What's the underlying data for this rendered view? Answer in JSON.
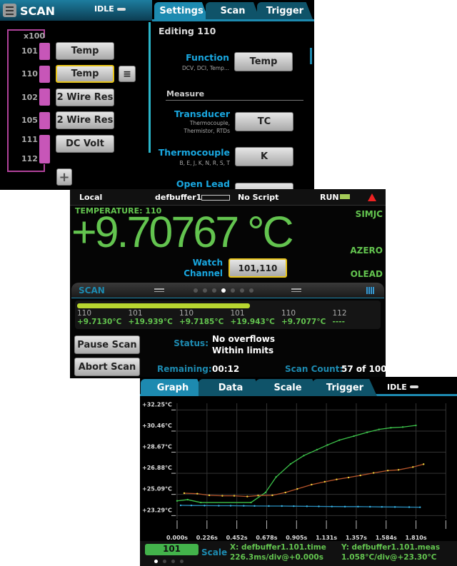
{
  "scan_screen": {
    "title": "SCAN",
    "state": "IDLE",
    "multiplier": "x100",
    "tabs": [
      {
        "label": "Settings",
        "active": true
      },
      {
        "label": "Scan",
        "active": false
      },
      {
        "label": "Trigger",
        "active": false
      }
    ],
    "channels": [
      {
        "ch": "101",
        "func": "Temp"
      },
      {
        "ch": "110",
        "func": "Temp",
        "selected": true
      },
      {
        "ch": "102",
        "func": "2 Wire Res"
      },
      {
        "ch": "105",
        "func": "2 Wire Res"
      },
      {
        "ch": "111",
        "func": "DC Volt"
      },
      {
        "ch": "112",
        "func": ""
      }
    ],
    "editing": "Editing 110",
    "function": {
      "label": "Function",
      "hint": "DCV, DCI, Temp...",
      "value": "Temp"
    },
    "measure_header": "Measure",
    "transducer": {
      "label": "Transducer",
      "hint1": "Thermocouple,",
      "hint2": "Thermistor, RTDs",
      "value": "TC"
    },
    "thermocouple": {
      "label": "Thermocouple",
      "hint": "B, E, J, K, N, R, S, T",
      "value": "K"
    },
    "open_lead": {
      "label": "Open Lead"
    }
  },
  "home_screen": {
    "status": {
      "mode": "Local",
      "buffer": "defbuffer1",
      "script": "No Script",
      "run": "RUN"
    },
    "function_label": "TEMPERATURE: 110",
    "reading": "+9.70767 °C",
    "indicators": [
      "SIMJC",
      "AZERO",
      "OLEAD"
    ],
    "watch_label1": "Watch",
    "watch_label2": "Channel",
    "watch_value": "101,110",
    "swipe_title": "SCAN",
    "swipe_page": 4,
    "swipe_pages": 7,
    "progress": 0.57,
    "readings": [
      {
        "ch": "110",
        "val": "+9.7130°C"
      },
      {
        "ch": "101",
        "val": "+19.939°C"
      },
      {
        "ch": "110",
        "val": "+9.7185°C"
      },
      {
        "ch": "101",
        "val": "+19.943°C"
      },
      {
        "ch": "110",
        "val": "+9.7077°C"
      },
      {
        "ch": "112",
        "val": "----"
      }
    ],
    "pause": "Pause Scan",
    "abort": "Abort Scan",
    "status_label": "Status:",
    "status_1": "No overflows",
    "status_2": "Within limits",
    "remaining_label": "Remaining:",
    "remaining": "00:12",
    "count_label": "Scan Count:",
    "count": "57 of 100"
  },
  "graph_screen": {
    "tabs": [
      {
        "label": "Graph",
        "active": true
      },
      {
        "label": "Data"
      },
      {
        "label": "Scale"
      },
      {
        "label": "Trigger"
      }
    ],
    "state": "IDLE",
    "channel": "101",
    "scale_label": "Scale",
    "x_info1": "X: defbuffer1.101.time",
    "x_info2": "226.3ms/div@+0.000s",
    "y_info1": "Y: defbuffer1.101.meas",
    "y_info2": "1.058°C/div@+23.30°C"
  },
  "chart_data": {
    "type": "line",
    "x_ticks": [
      "0.000s",
      "0.226s",
      "0.452s",
      "0.678s",
      "0.905s",
      "1.131s",
      "1.357s",
      "1.584s",
      "1.810s"
    ],
    "y_ticks": [
      "+32.25°C",
      "+30.46°C",
      "+28.67°C",
      "+26.88°C",
      "+25.09°C",
      "+23.29°C"
    ],
    "xlim": [
      0,
      2.04
    ],
    "ylim": [
      21.8,
      33
    ],
    "grid": true,
    "series": [
      {
        "color": "#3cc24a",
        "x": [
          0,
          0.08,
          0.18,
          0.56,
          0.67,
          0.75,
          0.86,
          0.96,
          1.06,
          1.14,
          1.23,
          1.34,
          1.44,
          1.53,
          1.62,
          1.71,
          1.81
        ],
        "y": [
          24.54,
          24.64,
          24.4,
          24.4,
          25.25,
          26.56,
          27.67,
          28.38,
          28.88,
          29.28,
          29.69,
          30.03,
          30.35,
          30.6,
          30.74,
          30.8,
          30.94
        ]
      },
      {
        "color": "#b5542a",
        "marker": "#f2d53c",
        "x": [
          0.054,
          0.153,
          0.244,
          0.343,
          0.433,
          0.532,
          0.614,
          0.722,
          0.821,
          0.911,
          1.019,
          1.119,
          1.209,
          1.299,
          1.389,
          1.489,
          1.597,
          1.678,
          1.787,
          1.868
        ],
        "y": [
          25.19,
          25.15,
          25.01,
          24.97,
          24.97,
          24.91,
          24.99,
          25.01,
          25.25,
          25.55,
          25.92,
          26.16,
          26.36,
          26.52,
          26.7,
          26.91,
          27.11,
          27.17,
          27.41,
          27.65
        ]
      },
      {
        "color": "#2a8fc0",
        "marker": "#3ab8e8",
        "x": [
          0.027,
          0.108,
          0.208,
          0.316,
          0.406,
          0.505,
          0.587,
          0.695,
          0.794,
          0.884,
          0.984,
          1.074,
          1.173,
          1.272,
          1.371,
          1.462,
          1.552,
          1.651,
          1.759,
          1.841
        ],
        "y": [
          24.16,
          24.15,
          24.14,
          24.13,
          24.13,
          24.12,
          24.11,
          24.1,
          24.1,
          24.09,
          24.08,
          24.07,
          24.06,
          24.05,
          24.05,
          24.04,
          24.03,
          24.02,
          24.01,
          24.0
        ]
      }
    ]
  },
  "colors": {
    "accent": "#1d8ab0",
    "label": "#19a7e0",
    "reading": "#63c44f",
    "channel_bar": "#c756b8",
    "progress": "#b8d630"
  }
}
